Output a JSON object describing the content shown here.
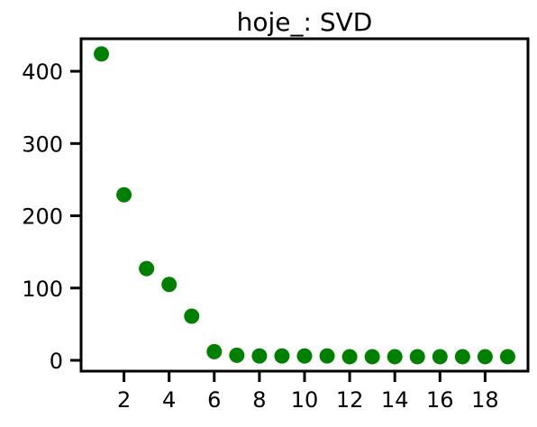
{
  "chart_data": {
    "type": "scatter",
    "title": "hoje_: SVD",
    "xlabel": "",
    "ylabel": "",
    "x": [
      1,
      2,
      3,
      4,
      5,
      6,
      7,
      8,
      9,
      10,
      11,
      12,
      13,
      14,
      15,
      16,
      17,
      18,
      19
    ],
    "y": [
      424,
      229,
      127,
      105,
      61,
      12,
      7,
      6,
      6,
      6,
      6,
      5,
      5,
      5,
      5,
      5,
      5,
      5,
      5
    ],
    "xlim": [
      0.1,
      19.9
    ],
    "ylim": [
      -15,
      445
    ],
    "x_ticks": [
      2,
      4,
      6,
      8,
      10,
      12,
      14,
      16,
      18
    ],
    "y_ticks": [
      0,
      100,
      200,
      300,
      400
    ],
    "marker_color": "#008000",
    "grid": false,
    "legend": "none"
  }
}
